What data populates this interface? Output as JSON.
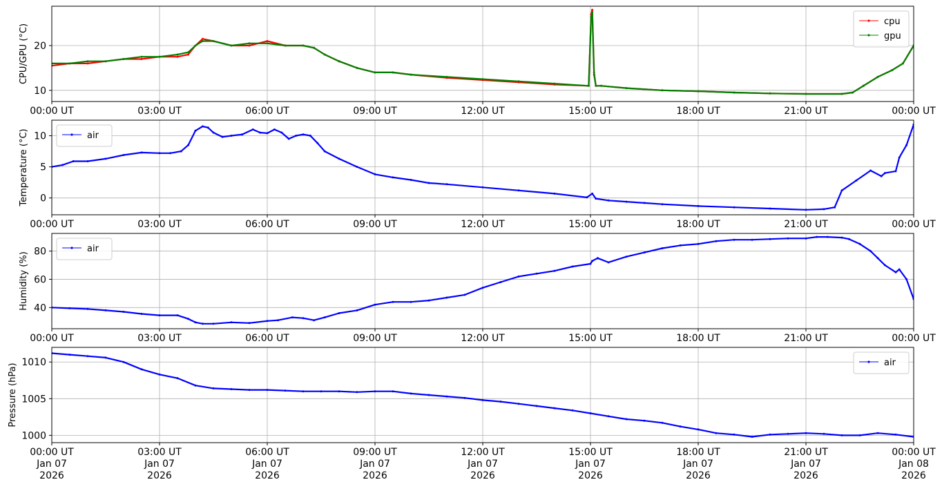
{
  "chart_data": [
    {
      "type": "line",
      "ylabel": "CPU/GPU (°C)",
      "xlim": [
        0,
        24
      ],
      "ylim": [
        7.5,
        28.8
      ],
      "yticks": [
        10,
        20
      ],
      "grid": true,
      "legend_position": "top-right",
      "xtick_labels": [
        "00:00 UT",
        "03:00 UT",
        "06:00 UT",
        "09:00 UT",
        "12:00 UT",
        "15:00 UT",
        "18:00 UT",
        "21:00 UT",
        "00:00 UT"
      ],
      "series": [
        {
          "name": "cpu",
          "color": "#ff0000",
          "x": [
            0,
            0.5,
            1,
            1.5,
            2,
            2.5,
            3,
            3.5,
            3.8,
            4,
            4.2,
            4.5,
            5,
            5.5,
            6,
            6.5,
            7,
            7.3,
            7.6,
            8,
            8.5,
            9,
            9.5,
            10,
            11,
            12,
            13,
            14,
            14.95,
            15.02,
            15.05,
            15.1,
            15.15,
            15.3,
            16,
            17,
            18,
            19,
            20,
            21,
            22,
            22.3,
            22.6,
            23,
            23.4,
            23.7,
            24
          ],
          "y": [
            15.5,
            16,
            16,
            16.5,
            17,
            17,
            17.5,
            17.5,
            18,
            20,
            21.5,
            21,
            20,
            20,
            21,
            20,
            20,
            19.5,
            18,
            16.5,
            15,
            14,
            14,
            13.5,
            12.8,
            12.3,
            11.8,
            11.3,
            11,
            27,
            28,
            14,
            11,
            11,
            10.5,
            10,
            9.8,
            9.5,
            9.3,
            9.2,
            9.2,
            9.5,
            11,
            13,
            14.5,
            16,
            20
          ]
        },
        {
          "name": "gpu",
          "color": "#008000",
          "x": [
            0,
            0.5,
            1,
            1.5,
            2,
            2.5,
            3,
            3.5,
            3.8,
            4,
            4.2,
            4.5,
            5,
            5.5,
            6,
            6.5,
            7,
            7.3,
            7.6,
            8,
            8.5,
            9,
            9.5,
            10,
            11,
            12,
            13,
            14,
            14.95,
            15.02,
            15.05,
            15.1,
            15.15,
            15.3,
            16,
            17,
            18,
            19,
            20,
            21,
            22,
            22.3,
            22.6,
            23,
            23.4,
            23.7,
            24
          ],
          "y": [
            16,
            16,
            16.5,
            16.5,
            17,
            17.5,
            17.5,
            18,
            18.5,
            20,
            21,
            21,
            20,
            20.5,
            20.5,
            20,
            20,
            19.5,
            18,
            16.5,
            15,
            14,
            14,
            13.5,
            13,
            12.5,
            12,
            11.5,
            11,
            26.5,
            27.5,
            13.5,
            11,
            11,
            10.5,
            10,
            9.8,
            9.5,
            9.3,
            9.2,
            9.2,
            9.5,
            11,
            13,
            14.5,
            16,
            20
          ]
        }
      ]
    },
    {
      "type": "line",
      "ylabel": "Temperature (°C)",
      "xlim": [
        0,
        24
      ],
      "ylim": [
        -2.7,
        12.5
      ],
      "yticks": [
        0,
        5,
        10
      ],
      "grid": true,
      "legend_position": "top-left",
      "xtick_labels": [
        "00:00 UT",
        "03:00 UT",
        "06:00 UT",
        "09:00 UT",
        "12:00 UT",
        "15:00 UT",
        "18:00 UT",
        "21:00 UT",
        "00:00 UT"
      ],
      "series": [
        {
          "name": "air",
          "color": "#0000ff",
          "x": [
            0,
            0.3,
            0.6,
            1,
            1.5,
            2,
            2.5,
            3,
            3.3,
            3.6,
            3.8,
            4,
            4.2,
            4.35,
            4.5,
            4.75,
            5,
            5.3,
            5.6,
            5.8,
            6,
            6.2,
            6.4,
            6.6,
            6.8,
            7,
            7.2,
            7.4,
            7.6,
            8,
            8.5,
            9,
            9.5,
            10,
            10.5,
            11,
            12,
            13,
            14,
            14.9,
            15.05,
            15.15,
            15.5,
            16,
            16.5,
            17,
            18,
            19,
            20,
            21,
            21.5,
            21.8,
            22,
            22.4,
            22.8,
            23.1,
            23.2,
            23.5,
            23.6,
            23.8,
            24
          ],
          "y": [
            5,
            5.3,
            5.9,
            5.9,
            6.3,
            6.9,
            7.3,
            7.2,
            7.2,
            7.5,
            8.5,
            10.8,
            11.5,
            11.3,
            10.5,
            9.8,
            10,
            10.2,
            11,
            10.5,
            10.4,
            11,
            10.5,
            9.5,
            10,
            10.2,
            10,
            8.8,
            7.5,
            6.3,
            5,
            3.8,
            3.3,
            2.9,
            2.4,
            2.2,
            1.7,
            1.2,
            0.7,
            0.1,
            0.7,
            -0.1,
            -0.4,
            -0.6,
            -0.8,
            -1.0,
            -1.3,
            -1.5,
            -1.7,
            -1.9,
            -1.8,
            -1.5,
            1.2,
            2.8,
            4.4,
            3.5,
            4.0,
            4.3,
            6.5,
            8.5,
            11.8
          ]
        }
      ]
    },
    {
      "type": "line",
      "ylabel": "Humidity (%)",
      "xlim": [
        0,
        24
      ],
      "ylim": [
        25,
        92.5
      ],
      "yticks": [
        40,
        60,
        80
      ],
      "grid": true,
      "legend_position": "top-left",
      "xtick_labels": [
        "00:00 UT",
        "03:00 UT",
        "06:00 UT",
        "09:00 UT",
        "12:00 UT",
        "15:00 UT",
        "18:00 UT",
        "21:00 UT",
        "00:00 UT"
      ],
      "series": [
        {
          "name": "air",
          "color": "#0000ff",
          "x": [
            0,
            0.5,
            1,
            1.5,
            2,
            2.5,
            3,
            3.5,
            3.8,
            4,
            4.2,
            4.5,
            5,
            5.5,
            6,
            6.3,
            6.7,
            7,
            7.3,
            7.6,
            8,
            8.5,
            9,
            9.5,
            10,
            10.5,
            11,
            11.5,
            12,
            12.5,
            13,
            13.5,
            14,
            14.5,
            15,
            15.05,
            15.2,
            15.5,
            16,
            16.5,
            17,
            17.5,
            18,
            18.5,
            19,
            19.5,
            20,
            20.5,
            21,
            21.3,
            21.6,
            22,
            22.2,
            22.5,
            22.8,
            23,
            23.2,
            23.5,
            23.6,
            23.8,
            24
          ],
          "y": [
            40,
            39.5,
            39,
            38,
            37,
            35.5,
            34.5,
            34.5,
            32,
            29.5,
            28.5,
            28.5,
            29.5,
            29,
            30.5,
            31,
            33,
            32.5,
            31,
            33,
            36,
            38,
            42,
            44,
            44,
            45,
            47,
            49,
            54,
            58,
            62,
            64,
            66,
            69,
            71,
            73,
            75,
            72,
            76,
            79,
            82,
            84,
            85,
            87,
            88,
            88,
            88.5,
            89,
            89,
            90,
            90,
            89.5,
            88.5,
            85,
            80,
            75,
            70,
            65,
            67,
            60,
            46
          ]
        }
      ]
    },
    {
      "type": "line",
      "ylabel": "Pressure (hPa)",
      "xlim": [
        0,
        24
      ],
      "ylim": [
        999,
        1012
      ],
      "yticks": [
        1000,
        1005,
        1010
      ],
      "grid": true,
      "legend_position": "top-right",
      "xtick_labels": [
        "00:00 UT\nJan 07\n2026",
        "03:00 UT\nJan 07\n2026",
        "06:00 UT\nJan 07\n2026",
        "09:00 UT\nJan 07\n2026",
        "12:00 UT\nJan 07\n2026",
        "15:00 UT\nJan 07\n2026",
        "18:00 UT\nJan 07\n2026",
        "21:00 UT\nJan 07\n2026",
        "00:00 UT\nJan 08\n2026"
      ],
      "series": [
        {
          "name": "air",
          "color": "#0000ff",
          "x": [
            0,
            0.5,
            1,
            1.5,
            2,
            2.5,
            3,
            3.5,
            4,
            4.5,
            5,
            5.5,
            6,
            6.5,
            7,
            7.5,
            8,
            8.5,
            9,
            9.5,
            10,
            10.5,
            11,
            11.5,
            12,
            12.5,
            13,
            13.5,
            14,
            14.5,
            15,
            15.5,
            16,
            16.5,
            17,
            17.5,
            18,
            18.5,
            19,
            19.5,
            20,
            20.5,
            21,
            21.5,
            22,
            22.5,
            23,
            23.5,
            24
          ],
          "y": [
            1011.2,
            1011,
            1010.8,
            1010.6,
            1010,
            1009,
            1008.3,
            1007.8,
            1006.8,
            1006.4,
            1006.3,
            1006.2,
            1006.2,
            1006.1,
            1006,
            1006,
            1006,
            1005.9,
            1006,
            1006,
            1005.7,
            1005.5,
            1005.3,
            1005.1,
            1004.8,
            1004.6,
            1004.3,
            1004,
            1003.7,
            1003.4,
            1003,
            1002.6,
            1002.2,
            1002,
            1001.7,
            1001.2,
            1000.8,
            1000.3,
            1000.1,
            999.8,
            1000.1,
            1000.2,
            1000.3,
            1000.2,
            1000,
            1000,
            1000.3,
            1000.1,
            999.8
          ]
        }
      ]
    }
  ]
}
